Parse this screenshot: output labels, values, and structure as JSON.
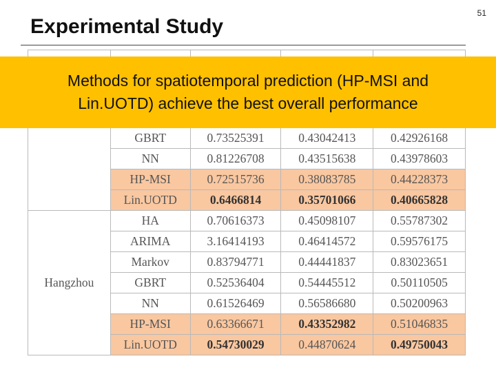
{
  "slide": {
    "title": "Experimental Study",
    "page_number": "51"
  },
  "banner": {
    "line1": "Methods for spatiotemporal prediction (HP-MSI and",
    "line2": "Lin.UOTD) achieve the best overall performance"
  },
  "table": {
    "top_rows": [
      {
        "method": "GBRT",
        "v1": "0.73525391",
        "v2": "0.43042413",
        "v3": "0.42926168"
      },
      {
        "method": "NN",
        "v1": "0.81226708",
        "v2": "0.43515638",
        "v3": "0.43978603"
      },
      {
        "method": "HP-MSI",
        "v1": "0.72515736",
        "v2": "0.38083785",
        "v3": "0.44228373"
      },
      {
        "method": "Lin.UOTD",
        "v1": "0.6466814",
        "v2": "0.35701066",
        "v3": "0.40665828"
      }
    ],
    "hangzhou": {
      "city": "Hangzhou",
      "rows": [
        {
          "method": "HA",
          "v1": "0.70616373",
          "v2": "0.45098107",
          "v3": "0.55787302"
        },
        {
          "method": "ARIMA",
          "v1": "3.16414193",
          "v2": "0.46414572",
          "v3": "0.59576175"
        },
        {
          "method": "Markov",
          "v1": "0.83794771",
          "v2": "0.44441837",
          "v3": "0.83023651"
        },
        {
          "method": "GBRT",
          "v1": "0.52536404",
          "v2": "0.54445512",
          "v3": "0.50110505"
        },
        {
          "method": "NN",
          "v1": "0.61526469",
          "v2": "0.56586680",
          "v3": "0.50200963"
        },
        {
          "method": "HP-MSI",
          "v1": "0.63366671",
          "v2": "0.43352982",
          "v3": "0.51046835"
        },
        {
          "method": "Lin.UOTD",
          "v1": "0.54730029",
          "v2": "0.44870624",
          "v3": "0.49750043"
        }
      ]
    },
    "highlight_color": "#f9c7a0"
  }
}
